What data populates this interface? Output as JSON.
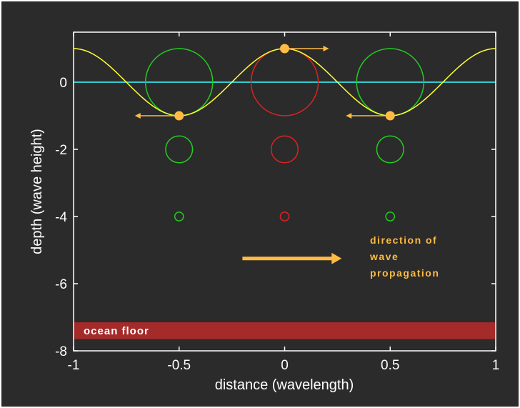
{
  "colors": {
    "frame_bg": "#2b2b2b",
    "axis": "#ffffff",
    "surface_wave": "#ffff33",
    "sea_level": "#33cccc",
    "trough_orbit": "#22cc22",
    "crest_orbit": "#dd2222",
    "particle_and_arrow": "#ffbb44",
    "ocean_floor": "#a52a2a"
  },
  "axes": {
    "xlabel": "distance (wavelength)",
    "ylabel": "depth (wave height)",
    "xlim": [
      -1,
      1
    ],
    "ylim": [
      -8,
      1.6
    ],
    "x_ticks": [
      {
        "value": -1,
        "label": "-1"
      },
      {
        "value": -0.5,
        "label": "-0.5"
      },
      {
        "value": 0,
        "label": "0"
      },
      {
        "value": 0.5,
        "label": "0.5"
      },
      {
        "value": 1,
        "label": "1"
      }
    ],
    "y_ticks": [
      {
        "value": 0,
        "label": "0"
      },
      {
        "value": -2,
        "label": "-2"
      },
      {
        "value": -4,
        "label": "-4"
      },
      {
        "value": -6,
        "label": "-6"
      },
      {
        "value": -8,
        "label": "-8"
      }
    ]
  },
  "surface_wave": {
    "amplitude": 1,
    "sea_level": 0
  },
  "orbits": [
    {
      "x": -0.5,
      "depth": 0,
      "radius": 1,
      "kind": "trough"
    },
    {
      "x": 0,
      "depth": 0,
      "radius": 1,
      "kind": "crest"
    },
    {
      "x": 0.5,
      "depth": 0,
      "radius": 1,
      "kind": "trough"
    },
    {
      "x": -0.5,
      "depth": -2,
      "radius": 0.4,
      "kind": "trough"
    },
    {
      "x": 0,
      "depth": -2,
      "radius": 0.4,
      "kind": "crest"
    },
    {
      "x": 0.5,
      "depth": -2,
      "radius": 0.4,
      "kind": "trough"
    },
    {
      "x": -0.5,
      "depth": -4,
      "radius": 0.13,
      "kind": "trough"
    },
    {
      "x": 0,
      "depth": -4,
      "radius": 0.13,
      "kind": "crest"
    },
    {
      "x": 0.5,
      "depth": -4,
      "radius": 0.13,
      "kind": "trough"
    }
  ],
  "particles": [
    {
      "x": -0.5,
      "y": -1,
      "motion": "left"
    },
    {
      "x": 0,
      "y": 1,
      "motion": "right"
    },
    {
      "x": 0.5,
      "y": -1,
      "motion": "left"
    }
  ],
  "propagation": {
    "label_lines": [
      "direction of",
      "wave",
      "propagation"
    ],
    "arrow_from": [
      -0.2,
      -5.25
    ],
    "arrow_to": [
      0.27,
      -5.25
    ]
  },
  "ocean_floor": {
    "label": "ocean floor",
    "top": -7.15,
    "bottom": -7.65
  }
}
